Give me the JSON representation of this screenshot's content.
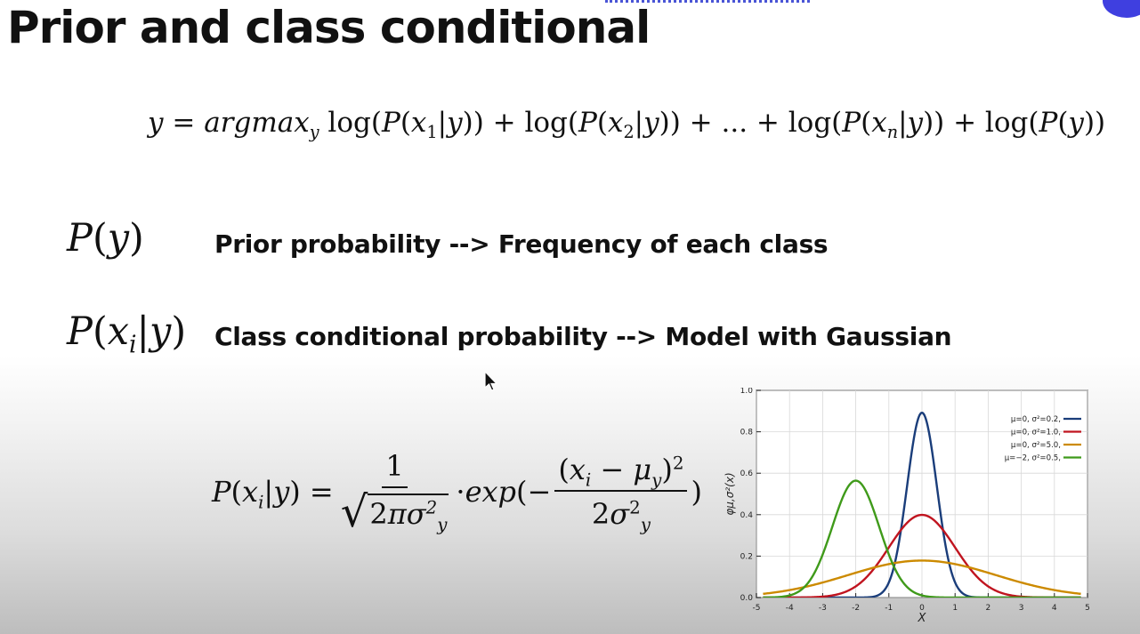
{
  "slide": {
    "title": "Prior and class conditional",
    "main_equation": "y = argmax_y log(P(x_1|y)) + log(P(x_2|y)) + ... + log(P(x_n|y)) + log(P(y))",
    "rows": [
      {
        "symbol": "P(y)",
        "description": "Prior probability --> Frequency of each class"
      },
      {
        "symbol": "P(x_i|y)",
        "description": "Class conditional probability --> Model with Gaussian"
      }
    ],
    "gaussian_formula": "P(x_i|y) = 1 / sqrt(2 pi sigma_y^2) · exp(-(x_i - mu_y)^2 / (2 sigma_y^2))"
  },
  "colors": {
    "title_text": "#111111",
    "accent": "#3f3fe0",
    "series_blue": "#1a3d7a",
    "series_red": "#c0141f",
    "series_orange": "#cc8a00",
    "series_green": "#3f9a1a"
  },
  "chart_data": {
    "type": "line",
    "title": "",
    "xlabel": "X",
    "ylabel": "φμ,σ²(x)",
    "xlim": [
      -5,
      5
    ],
    "ylim": [
      0.0,
      1.0
    ],
    "xticks": [
      "-5",
      "-4",
      "-3",
      "-2",
      "-1",
      "0",
      "1",
      "2",
      "3",
      "4",
      "5"
    ],
    "yticks": [
      "0.0",
      "0.2",
      "0.4",
      "0.6",
      "0.8",
      "1.0"
    ],
    "grid": true,
    "legend_position": "top-right",
    "series": [
      {
        "name": "μ=0,   σ²=0.2,",
        "mu": 0,
        "variance": 0.2,
        "color": "#1a3d7a"
      },
      {
        "name": "μ=0,   σ²=1.0,",
        "mu": 0,
        "variance": 1.0,
        "color": "#c0141f"
      },
      {
        "name": "μ=0,   σ²=5.0,",
        "mu": 0,
        "variance": 5.0,
        "color": "#cc8a00"
      },
      {
        "name": "μ=−2, σ²=0.5,",
        "mu": -2,
        "variance": 0.5,
        "color": "#3f9a1a"
      }
    ]
  }
}
